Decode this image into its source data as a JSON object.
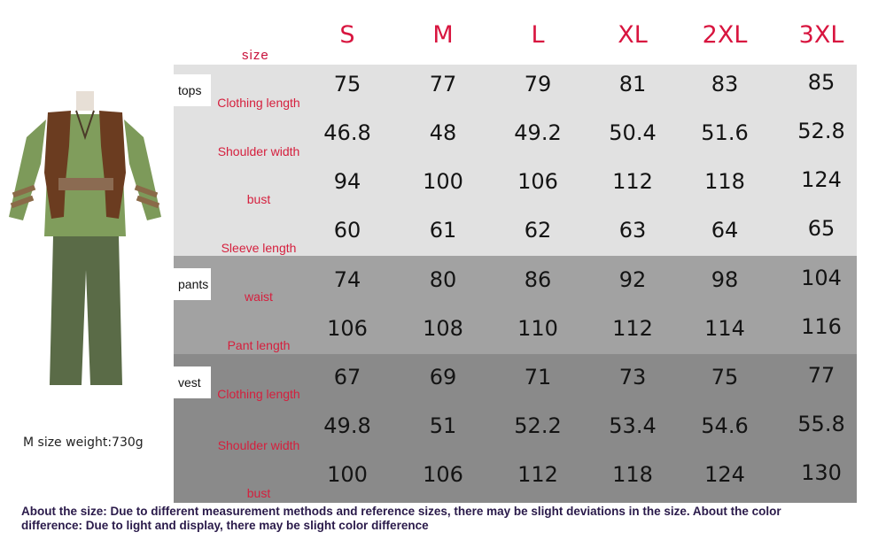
{
  "header": {
    "size_label": "size",
    "sizes": [
      "S",
      "M",
      "L",
      "XL",
      "2XL",
      "3XL"
    ]
  },
  "groups": {
    "tops": "tops",
    "pants": "pants",
    "vest": "vest"
  },
  "rows": [
    {
      "label": "Clothing length",
      "values": [
        "75",
        "77",
        "79",
        "81",
        "83",
        "85"
      ]
    },
    {
      "label": "Shoulder width",
      "values": [
        "46.8",
        "48",
        "49.2",
        "50.4",
        "51.6",
        "52.8"
      ]
    },
    {
      "label": "bust",
      "values": [
        "94",
        "100",
        "106",
        "112",
        "118",
        "124"
      ]
    },
    {
      "label": "Sleeve length",
      "values": [
        "60",
        "61",
        "62",
        "63",
        "64",
        "65"
      ]
    },
    {
      "label": "waist",
      "values": [
        "74",
        "80",
        "86",
        "92",
        "98",
        "104"
      ]
    },
    {
      "label": "Pant length",
      "values": [
        "106",
        "108",
        "110",
        "112",
        "114",
        "116"
      ]
    },
    {
      "label": "Clothing length",
      "values": [
        "67",
        "69",
        "71",
        "73",
        "75",
        "77"
      ]
    },
    {
      "label": "Shoulder width",
      "values": [
        "49.8",
        "51",
        "52.2",
        "53.4",
        "54.6",
        "55.8"
      ]
    },
    {
      "label": "bust",
      "values": [
        "100",
        "106",
        "112",
        "118",
        "124",
        "130"
      ]
    }
  ],
  "weight": "M size weight:730g",
  "note": "About the size: Due to different measurement methods and reference sizes, there may be slight deviations in the size. About the color difference: Due to light and display, there may be slight color difference",
  "colors": {
    "accent_red": "#d8153f",
    "tops_band": "#e1e1e1",
    "pants_band": "#a2a2a2",
    "vest_band": "#8a8a8a",
    "shirt_green": "#7d9a5a",
    "pants_green": "#5a6b47",
    "fur_brown": "#6b3c20"
  }
}
